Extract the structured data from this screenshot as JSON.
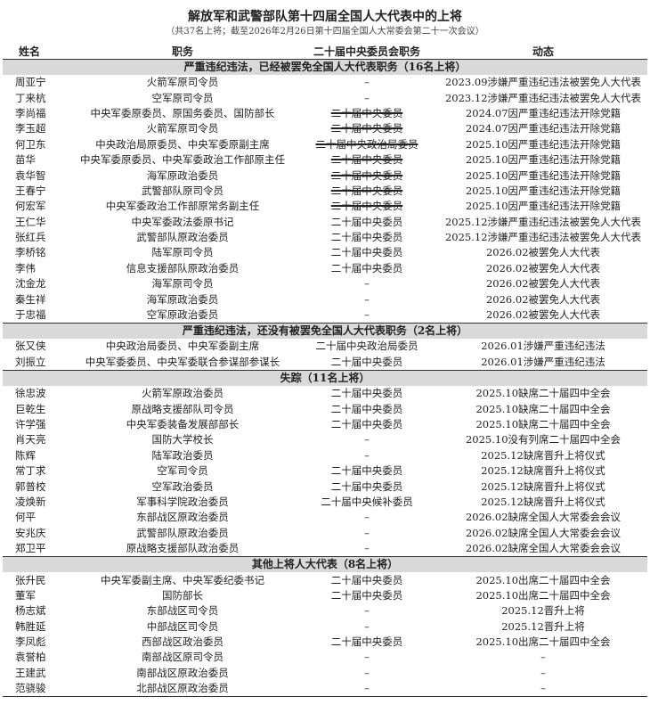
{
  "title": "解放军和武警部队第十四届全国人大代表中的上将",
  "subtitle": "（共37名上将；截至2026年2月26日第十四届全国人大常委会第二十一次会议）",
  "headers": [
    "姓名",
    "职务",
    "二十届中央委员会职务",
    "动态"
  ],
  "sections": [
    {
      "label": "严重违纪违法，已经被罢免全国人大代表职务（16名上将）",
      "rows": [
        {
          "name": "周亚宁",
          "post": "火箭军原司令员",
          "cc": "–",
          "struck": false,
          "status": "2023.09涉嫌严重违纪违法被罢免人大代表"
        },
        {
          "name": "丁来杭",
          "post": "空军原司令员",
          "cc": "–",
          "struck": false,
          "status": "2023.12涉嫌严重违纪违法被罢免人大代表"
        },
        {
          "name": "李尚福",
          "post": "中央军委原委员、原国务委员、国防部长",
          "cc": "二十届中央委员",
          "struck": true,
          "status": "2024.07因严重违纪违法开除党籍"
        },
        {
          "name": "李玉超",
          "post": "火箭军原司令员",
          "cc": "二十届中央委员",
          "struck": true,
          "status": "2024.07因严重违纪违法开除党籍"
        },
        {
          "name": "何卫东",
          "post": "中央政治局原委员、中央军委原副主席",
          "cc": "二十届中央政治局委员",
          "struck": true,
          "status": "2025.10因严重违纪违法开除党籍"
        },
        {
          "name": "苗华",
          "post": "中央军委原委员、中央军委政治工作部原主任",
          "cc": "二十届中央委员",
          "struck": true,
          "status": "2025.10因严重违纪违法开除党籍"
        },
        {
          "name": "袁华智",
          "post": "海军原政治委员",
          "cc": "二十届中央委员",
          "struck": true,
          "status": "2025.10因严重违纪违法开除党籍"
        },
        {
          "name": "王春宁",
          "post": "武警部队原司令员",
          "cc": "二十届中央委员",
          "struck": true,
          "status": "2025.10因严重违纪违法开除党籍"
        },
        {
          "name": "何宏军",
          "post": "中央军委政治工作部原常务副主任",
          "cc": "二十届中央委员",
          "struck": true,
          "status": "2025.10因严重违纪违法开除党籍"
        },
        {
          "name": "王仁华",
          "post": "中央军委政法委原书记",
          "cc": "二十届中央委员",
          "struck": false,
          "status": "2025.12涉嫌严重违纪违法被罢免人大代表"
        },
        {
          "name": "张红兵",
          "post": "武警部队原政治委员",
          "cc": "二十届中央委员",
          "struck": false,
          "status": "2025.12涉嫌严重违纪违法被罢免人大代表"
        },
        {
          "name": "李桥铭",
          "post": "陆军原司令员",
          "cc": "二十届中央委员",
          "struck": false,
          "status": "2026.02被罢免人大代表"
        },
        {
          "name": "李伟",
          "post": "信息支援部队原政治委员",
          "cc": "二十届中央委员",
          "struck": false,
          "status": "2026.02被罢免人大代表"
        },
        {
          "name": "沈金龙",
          "post": "海军原司令员",
          "cc": "–",
          "struck": false,
          "status": "2026.02被罢免人大代表"
        },
        {
          "name": "秦生祥",
          "post": "海军原政治委员",
          "cc": "–",
          "struck": false,
          "status": "2026.02被罢免人大代表"
        },
        {
          "name": "于忠福",
          "post": "空军原政治委员",
          "cc": "–",
          "struck": false,
          "status": "2026.02被罢免人大代表"
        }
      ]
    },
    {
      "label": "严重违纪违法，还没有被罢免全国人大代表职务（2名上将）",
      "rows": [
        {
          "name": "张又侠",
          "post": "中央政治局委员、中央军委副主席",
          "cc": "二十届中央政治局委员",
          "struck": false,
          "status": "2026.01涉嫌严重违纪违法"
        },
        {
          "name": "刘振立",
          "post": "中央军委委员、中央军委联合参谋部参谋长",
          "cc": "二十届中央委员",
          "struck": false,
          "status": "2026.01涉嫌严重违纪违法"
        }
      ]
    },
    {
      "label": "失踪（11名上将）",
      "rows": [
        {
          "name": "徐忠波",
          "post": "火箭军原政治委员",
          "cc": "二十届中央委员",
          "struck": false,
          "status": "2025.10缺席二十届四中全会"
        },
        {
          "name": "巨乾生",
          "post": "原战略支援部队司令员",
          "cc": "二十届中央委员",
          "struck": false,
          "status": "2025.10缺席二十届四中全会"
        },
        {
          "name": "许学强",
          "post": "中央军委装备发展部部长",
          "cc": "二十届中央委员",
          "struck": false,
          "status": "2025.10缺席二十届四中全会"
        },
        {
          "name": "肖天亮",
          "post": "国防大学校长",
          "cc": "–",
          "struck": false,
          "status": "2025.10没有列席二十届四中全会"
        },
        {
          "name": "陈辉",
          "post": "陆军政治委员",
          "cc": "–",
          "struck": false,
          "status": "2025.12缺席晋升上将仪式"
        },
        {
          "name": "常丁求",
          "post": "空军司令员",
          "cc": "二十届中央委员",
          "struck": false,
          "status": "2025.12缺席晋升上将仪式"
        },
        {
          "name": "郭普校",
          "post": "空军政治委员",
          "cc": "二十届中央委员",
          "struck": false,
          "status": "2025.12缺席晋升上将仪式"
        },
        {
          "name": "凌焕新",
          "post": "军事科学院政治委员",
          "cc": "二十届中央候补委员",
          "struck": false,
          "status": "2025.12缺席晋升上将仪式"
        },
        {
          "name": "何平",
          "post": "东部战区原政治委员",
          "cc": "–",
          "struck": false,
          "status": "2026.02缺席全国人大常委会会议"
        },
        {
          "name": "安兆庆",
          "post": "武警部队原政治委员",
          "cc": "–",
          "struck": false,
          "status": "2026.02缺席全国人大常委会会议"
        },
        {
          "name": "郑卫平",
          "post": "原战略支援部队政治委员",
          "cc": "–",
          "struck": false,
          "status": "2026.02缺席全国人大常委会会议"
        }
      ]
    },
    {
      "label": "其他上将人大代表（8名上将）",
      "rows": [
        {
          "name": "张升民",
          "post": "中央军委副主席、中央军委纪委书记",
          "cc": "二十届中央委员",
          "struck": false,
          "status": "2025.10出席二十届四中全会"
        },
        {
          "name": "董军",
          "post": "国防部长",
          "cc": "二十届中央委员",
          "struck": false,
          "status": "2025.10出席二十届四中全会"
        },
        {
          "name": "杨志斌",
          "post": "东部战区司令员",
          "cc": "–",
          "struck": false,
          "status": "2025.12晋升上将"
        },
        {
          "name": "韩胜延",
          "post": "中部战区司令员",
          "cc": "–",
          "struck": false,
          "status": "2025.12晋升上将"
        },
        {
          "name": "李凤彪",
          "post": "西部战区政治委员",
          "cc": "二十届中央委员",
          "struck": false,
          "status": "2025.10出席二十届四中全会"
        },
        {
          "name": "袁誉柏",
          "post": "南部战区原司令员",
          "cc": "–",
          "struck": false,
          "status": "–"
        },
        {
          "name": "王建武",
          "post": "南部战区原政治委员",
          "cc": "–",
          "struck": false,
          "status": "–"
        },
        {
          "name": "范骁骏",
          "post": "北部战区原政治委员",
          "cc": "–",
          "struck": false,
          "status": "–"
        }
      ]
    }
  ]
}
